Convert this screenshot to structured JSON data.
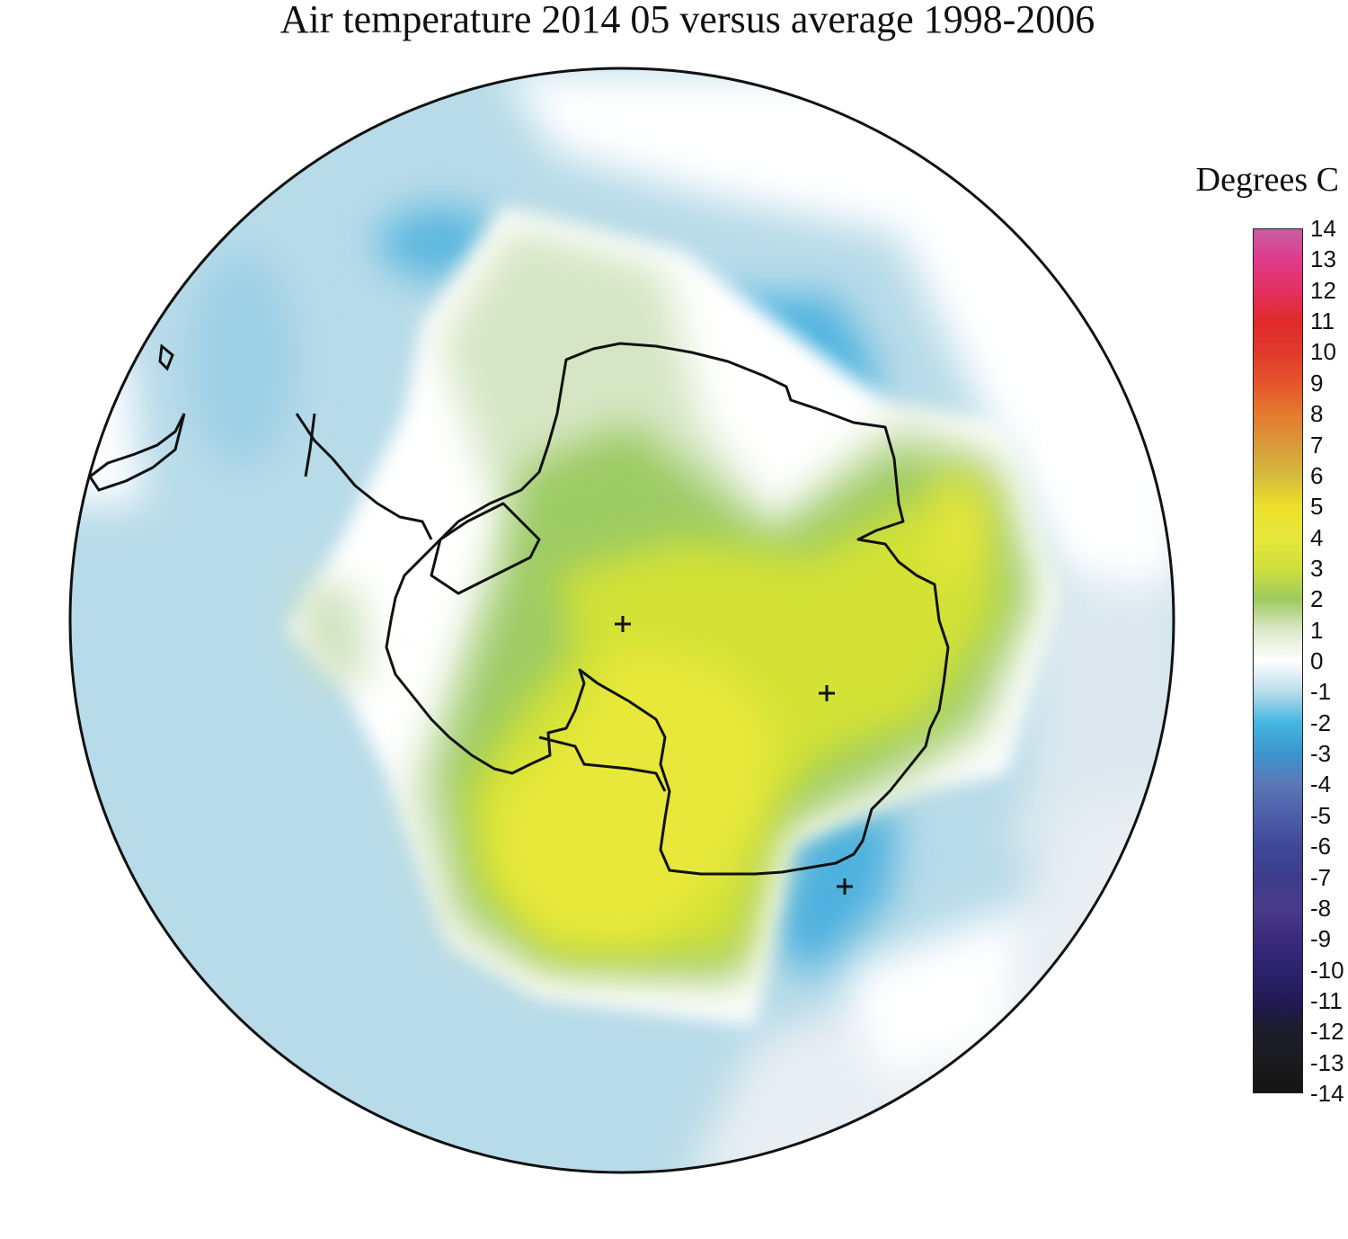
{
  "title": "Air temperature 2014 05 versus average 1998-2006",
  "colorbar": {
    "units_label": "Degrees C",
    "min": -14,
    "max": 14,
    "ticks": [
      "14",
      "13",
      "12",
      "11",
      "10",
      "9",
      "8",
      "7",
      "6",
      "5",
      "4",
      "3",
      "2",
      "1",
      "0",
      "-1",
      "-2",
      "-3",
      "-4",
      "-5",
      "-6",
      "-7",
      "-8",
      "-9",
      "-10",
      "-11",
      "-12",
      "-13",
      "-14"
    ],
    "colors": {
      "14": "#c75fa0",
      "13": "#e03a8a",
      "12": "#e33060",
      "11": "#e02a2a",
      "10": "#e03a2c",
      "9": "#e5552b",
      "8": "#e57a2e",
      "7": "#d99a3a",
      "6": "#d4bb3c",
      "5": "#ece02c",
      "4": "#e6e63a",
      "3": "#cfe03c",
      "2": "#9dc95e",
      "1": "#dbe8c8",
      "0": "#ffffff",
      "-1": "#b9dceb",
      "-2": "#45b5e0",
      "-3": "#3c96cf",
      "-4": "#5b77b6",
      "-5": "#4d5fa8",
      "-6": "#40489a",
      "-7": "#3d3c8c",
      "-8": "#4a3c8a",
      "-9": "#3b2a7c",
      "-10": "#2d2370",
      "-11": "#231a55",
      "-12": "#1c1c2a",
      "-13": "#1b1b1e",
      "-14": "#141414"
    }
  },
  "map": {
    "projection": "south polar stereographic",
    "pole_marker": "+"
  }
}
